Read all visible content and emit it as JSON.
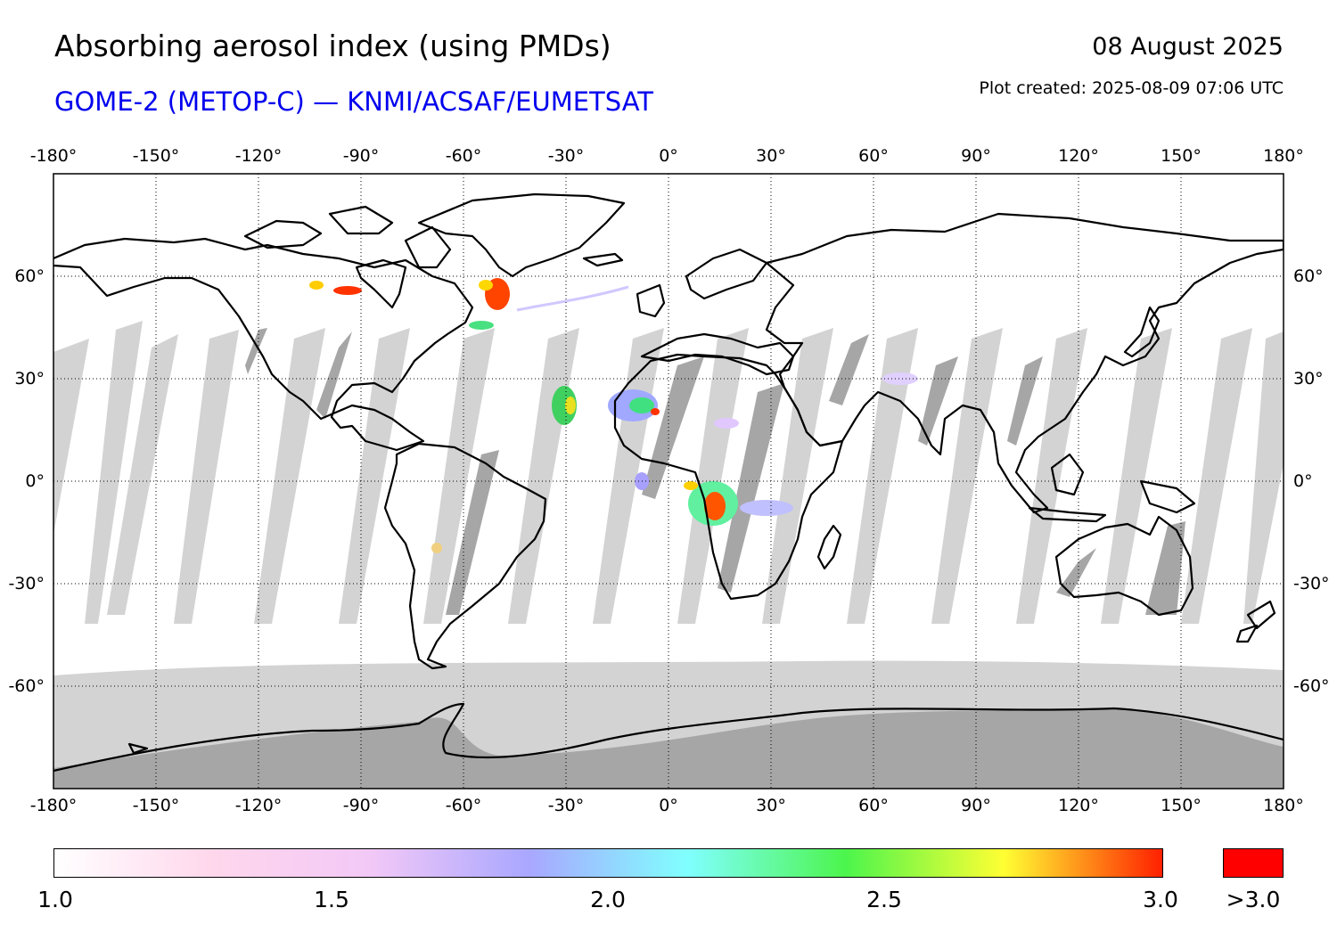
{
  "header": {
    "title": "Absorbing aerosol index (using PMDs)",
    "subtitle": "GOME-2 (METOP-C) — KNMI/ACSAF/EUMETSAT",
    "date": "08 August 2025",
    "created": "Plot created: 2025-08-09 07:06 UTC"
  },
  "map": {
    "projection": "equirectangular",
    "lon_ticks": [
      "-180°",
      "-150°",
      "-120°",
      "-90°",
      "-60°",
      "-30°",
      "0°",
      "30°",
      "60°",
      "90°",
      "120°",
      "150°",
      "180°"
    ],
    "lat_ticks": [
      "60°",
      "30°",
      "0°",
      "-30°",
      "-60°"
    ],
    "colors": {
      "no_data_light": "#d3d3d3",
      "no_data_dark": "#a6a6a6",
      "coastline": "#000000",
      "gridline": "#000000"
    }
  },
  "colorbar": {
    "tick_labels": [
      "1.0",
      "1.5",
      "2.0",
      "2.5",
      "3.0"
    ],
    "overflow_label": ">3.0",
    "overflow_color": "#ff0000",
    "gradient_colors": [
      "#ffffff",
      "#ffd7ec",
      "#f2c8f7",
      "#a9a7ff",
      "#80ffff",
      "#4cf54c",
      "#ffff33",
      "#ff2000"
    ]
  }
}
